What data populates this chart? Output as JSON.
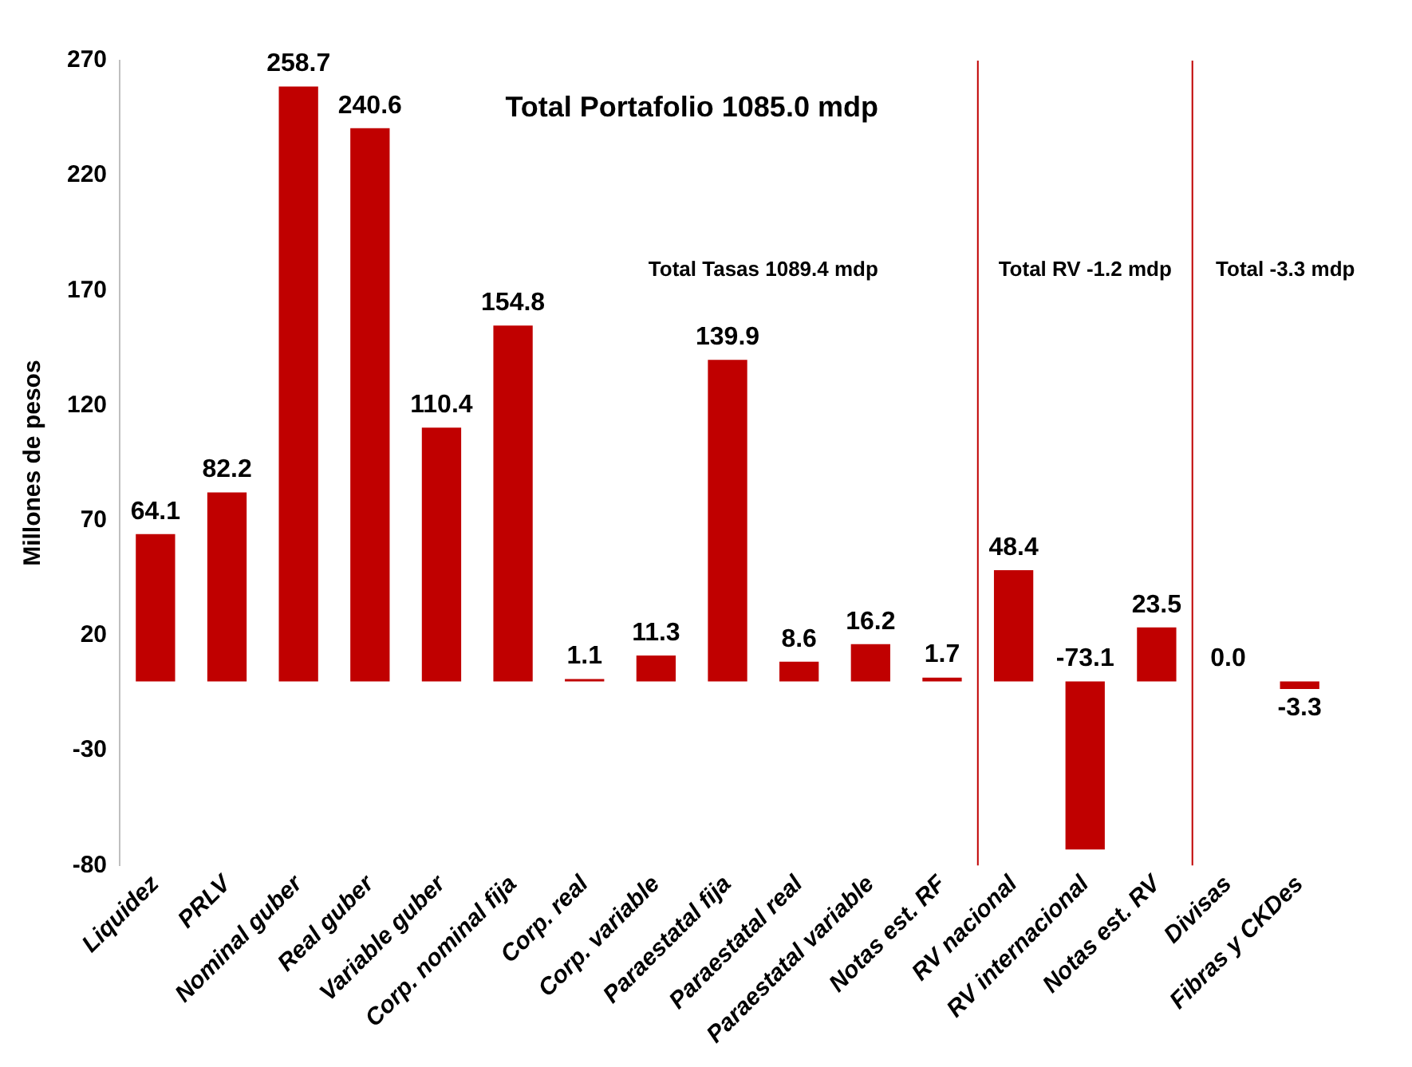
{
  "chart_data": {
    "type": "bar",
    "ylabel": "Millones de pesos",
    "categories": [
      "Liquidez",
      "PRLV",
      "Nominal guber",
      "Real guber",
      "Variable guber",
      "Corp. nominal fija",
      "Corp. real",
      "Corp. variable",
      "Paraestatal fija",
      "Paraestatal real",
      "Paraestatal variable",
      "Notas est. RF",
      "RV nacional",
      "RV internacional",
      "Notas est. RV",
      "Divisas",
      "Fibras y CKDes"
    ],
    "values": [
      64.1,
      82.2,
      258.7,
      240.6,
      110.4,
      154.8,
      1.1,
      11.3,
      139.9,
      8.6,
      16.2,
      1.7,
      48.4,
      -73.1,
      23.5,
      0.0,
      -3.3
    ],
    "value_labels": [
      "64.1",
      "82.2",
      "258.7",
      "240.6",
      "110.4",
      "154.8",
      "1.1",
      "11.3",
      "139.9",
      "8.6",
      "16.2",
      "1.7",
      "48.4",
      "-73.1",
      "23.5",
      "0.0",
      "-3.3"
    ],
    "color": "#c00000",
    "ylim": [
      -80,
      270
    ],
    "yticks": [
      -80,
      -30,
      20,
      70,
      120,
      170,
      220,
      270
    ],
    "grid": false,
    "annotations": [
      "Total Portafolio 1085.0 mdp",
      "Total Tasas 1089.4 mdp",
      "Total RV -1.2 mdp",
      "Total -3.3 mdp"
    ]
  }
}
